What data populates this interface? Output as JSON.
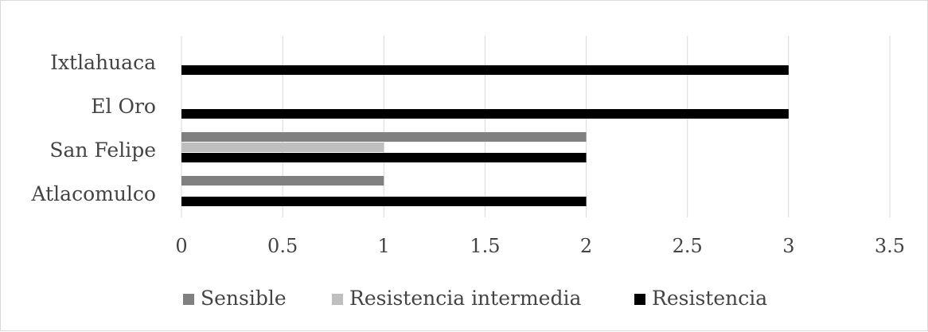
{
  "chart_data": {
    "type": "bar",
    "orientation": "horizontal",
    "categories": [
      "Atlacomulco",
      "San Felipe",
      "El Oro",
      "Ixtlahuaca"
    ],
    "series": [
      {
        "name": "Sensible",
        "values": [
          1,
          2,
          0,
          0
        ],
        "color": "#808080"
      },
      {
        "name": "Resistencia intermedia",
        "values": [
          0,
          1,
          0,
          0
        ],
        "color": "#bfbfbf"
      },
      {
        "name": "Resistencia",
        "values": [
          2,
          2,
          3,
          3
        ],
        "color": "#000000"
      }
    ],
    "x_ticks": [
      "0",
      "0.5",
      "1",
      "1.5",
      "2",
      "2.5",
      "3",
      "3.5"
    ],
    "xlim": [
      0,
      3.5
    ],
    "grid": "vertical",
    "legend_position": "bottom",
    "title": "",
    "xlabel": "",
    "ylabel": ""
  }
}
